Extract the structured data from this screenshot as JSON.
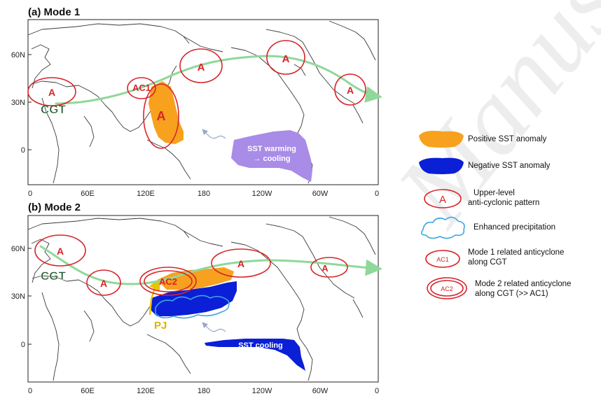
{
  "panels": [
    {
      "title": "(a) Mode 1",
      "y_ticks": [
        "60N",
        "30N",
        "0"
      ],
      "x_ticks": [
        "0",
        "60E",
        "120E",
        "180",
        "120W",
        "60W",
        "0"
      ],
      "anticyclone_mark": "A",
      "ac_label": "AC1",
      "cgt_label": "CGT",
      "sst_label_1": "SST warming",
      "sst_label_2": "→ cooling"
    },
    {
      "title": "(b) Mode 2",
      "y_ticks": [
        "60N",
        "30N",
        "0"
      ],
      "x_ticks": [
        "0",
        "60E",
        "120E",
        "180",
        "120W",
        "60W",
        "0"
      ],
      "anticyclone_mark": "A",
      "ac_label": "AC2",
      "cgt_label": "CGT",
      "pj_label": "PJ",
      "sst_label": "SST cooling"
    }
  ],
  "legend": {
    "positive_sst": "Positive SST anomaly",
    "negative_sst": "Negative SST anomaly",
    "anticyclone_symbol": "A",
    "anticyclone_line1": "Upper-level",
    "anticyclone_line2": "anti-cyclonic pattern",
    "precipitation": "Enhanced precipitation",
    "ac1_symbol": "AC1",
    "ac1_line1": "Mode 1 related anticyclone",
    "ac1_line2": "along CGT",
    "ac2_symbol": "AC2",
    "ac2_line1": "Mode 2 related anticyclone",
    "ac2_line2": "along CGT (>> AC1)"
  },
  "colors": {
    "positive_sst": "#f7a11e",
    "negative_sst": "#0a1fd6",
    "sst_warming_cooling": "#a98be8",
    "anticyclone": "#d8242a",
    "cgt_arrow": "#8fd89a",
    "precipitation": "#3ea7e0",
    "pj_arrow": "#e8c400"
  }
}
